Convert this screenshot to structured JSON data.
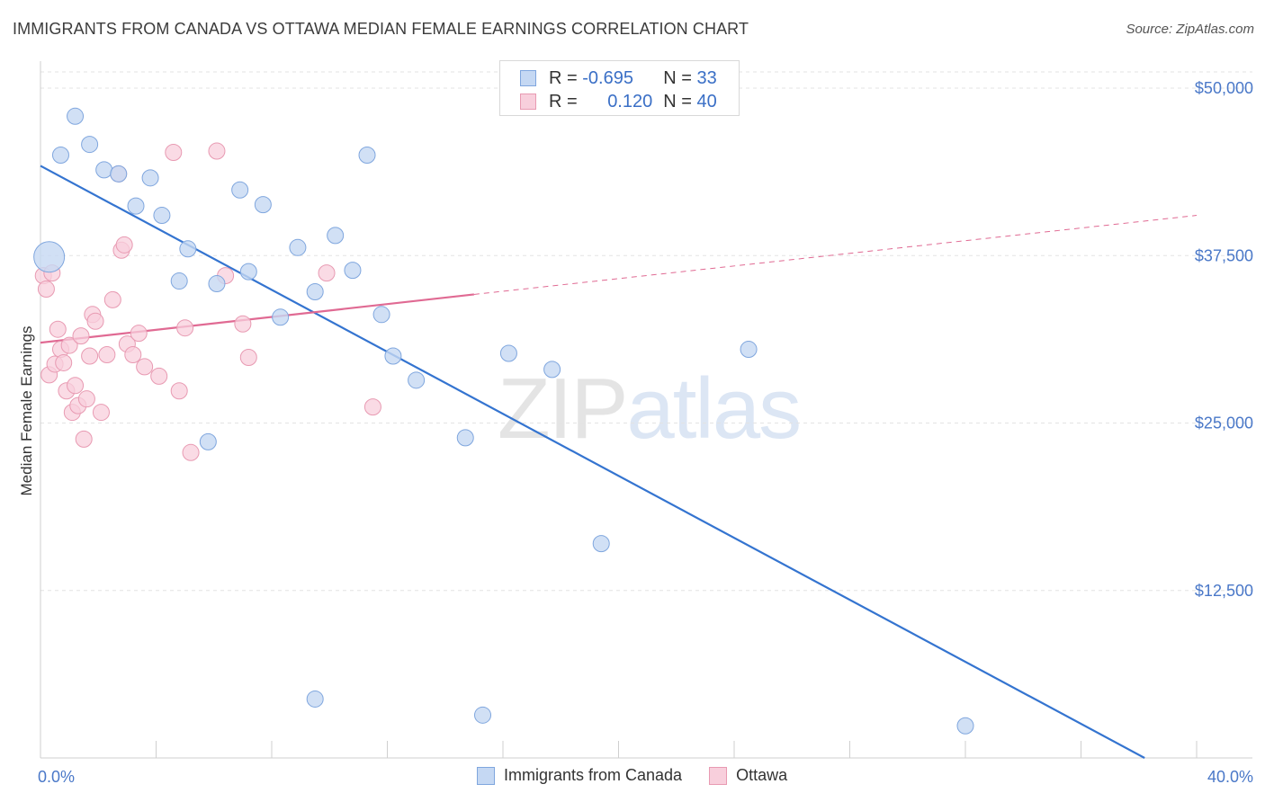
{
  "title": "IMMIGRANTS FROM CANADA VS OTTAWA MEDIAN FEMALE EARNINGS CORRELATION CHART",
  "source": "Source: ZipAtlas.com",
  "watermark": {
    "zip": "ZIP",
    "atlas": "atlas"
  },
  "colors": {
    "blue_fill": "#c5d8f3",
    "blue_stroke": "#7fa6de",
    "blue_line": "#3474d0",
    "pink_fill": "#f8cfdc",
    "pink_stroke": "#e89ab2",
    "pink_line": "#e06a93",
    "tick": "#4a78c8"
  },
  "legend": {
    "rows": [
      {
        "r_label": "R = ",
        "r_value": "-0.695",
        "n_label": "N = ",
        "n_value": "33"
      },
      {
        "r_label": "R = ",
        "r_value": "0.120",
        "n_label": "N = ",
        "n_value": "40"
      }
    ]
  },
  "bottom_legend": [
    "Immigrants from Canada",
    "Ottawa"
  ],
  "chart_data": {
    "type": "scatter",
    "title": "IMMIGRANTS FROM CANADA VS OTTAWA MEDIAN FEMALE EARNINGS CORRELATION CHART",
    "xlabel": "",
    "ylabel": "Median Female Earnings",
    "xlim": [
      0,
      40
    ],
    "ylim": [
      0,
      52000
    ],
    "x_ticks": [
      {
        "value": 0,
        "label": "0.0%"
      },
      {
        "value": 40,
        "label": "40.0%"
      }
    ],
    "y_ticks": [
      {
        "value": 12500,
        "label": "$12,500"
      },
      {
        "value": 25000,
        "label": "$25,000"
      },
      {
        "value": 37500,
        "label": "$37,500"
      },
      {
        "value": 50000,
        "label": "$50,000"
      }
    ],
    "grid": true,
    "legend_position": "top-center",
    "series": [
      {
        "name": "Immigrants from Canada",
        "color": "#7fa6de",
        "points": [
          {
            "x": 0.3,
            "y": 37400,
            "big": true
          },
          {
            "x": 0.7,
            "y": 45000
          },
          {
            "x": 1.2,
            "y": 47900
          },
          {
            "x": 1.7,
            "y": 45800
          },
          {
            "x": 2.2,
            "y": 43900
          },
          {
            "x": 2.7,
            "y": 43600
          },
          {
            "x": 3.3,
            "y": 41200
          },
          {
            "x": 3.8,
            "y": 43300
          },
          {
            "x": 4.2,
            "y": 40500
          },
          {
            "x": 5.1,
            "y": 38000
          },
          {
            "x": 4.8,
            "y": 35600
          },
          {
            "x": 6.1,
            "y": 35400
          },
          {
            "x": 6.9,
            "y": 42400
          },
          {
            "x": 7.2,
            "y": 36300
          },
          {
            "x": 7.7,
            "y": 41300
          },
          {
            "x": 8.3,
            "y": 32900
          },
          {
            "x": 8.9,
            "y": 38100
          },
          {
            "x": 9.5,
            "y": 34800
          },
          {
            "x": 10.2,
            "y": 39000
          },
          {
            "x": 10.8,
            "y": 36400
          },
          {
            "x": 11.3,
            "y": 45000
          },
          {
            "x": 11.8,
            "y": 33100
          },
          {
            "x": 12.2,
            "y": 30000
          },
          {
            "x": 13.0,
            "y": 28200
          },
          {
            "x": 14.7,
            "y": 23900
          },
          {
            "x": 16.2,
            "y": 30200
          },
          {
            "x": 17.7,
            "y": 29000
          },
          {
            "x": 19.4,
            "y": 16000
          },
          {
            "x": 24.5,
            "y": 30500
          },
          {
            "x": 5.8,
            "y": 23600
          },
          {
            "x": 9.5,
            "y": 4400
          },
          {
            "x": 15.3,
            "y": 3200
          },
          {
            "x": 32.0,
            "y": 2400
          }
        ],
        "trend": {
          "x": [
            0,
            38.2
          ],
          "y": [
            44200,
            0
          ],
          "style": "solid"
        }
      },
      {
        "name": "Ottawa",
        "color": "#e89ab2",
        "points": [
          {
            "x": 0.1,
            "y": 36000
          },
          {
            "x": 0.2,
            "y": 35000
          },
          {
            "x": 0.3,
            "y": 28600
          },
          {
            "x": 0.4,
            "y": 36200
          },
          {
            "x": 0.5,
            "y": 29400
          },
          {
            "x": 0.6,
            "y": 32000
          },
          {
            "x": 0.7,
            "y": 30500
          },
          {
            "x": 0.8,
            "y": 29500
          },
          {
            "x": 0.9,
            "y": 27400
          },
          {
            "x": 1.0,
            "y": 30800
          },
          {
            "x": 1.1,
            "y": 25800
          },
          {
            "x": 1.2,
            "y": 27800
          },
          {
            "x": 1.3,
            "y": 26300
          },
          {
            "x": 1.4,
            "y": 31500
          },
          {
            "x": 1.5,
            "y": 23800
          },
          {
            "x": 1.6,
            "y": 26800
          },
          {
            "x": 1.7,
            "y": 30000
          },
          {
            "x": 1.8,
            "y": 33100
          },
          {
            "x": 1.9,
            "y": 32600
          },
          {
            "x": 2.1,
            "y": 25800
          },
          {
            "x": 2.3,
            "y": 30100
          },
          {
            "x": 2.5,
            "y": 34200
          },
          {
            "x": 2.7,
            "y": 43600
          },
          {
            "x": 2.8,
            "y": 37900
          },
          {
            "x": 2.9,
            "y": 38300
          },
          {
            "x": 3.0,
            "y": 30900
          },
          {
            "x": 3.2,
            "y": 30100
          },
          {
            "x": 3.4,
            "y": 31700
          },
          {
            "x": 3.6,
            "y": 29200
          },
          {
            "x": 4.1,
            "y": 28500
          },
          {
            "x": 4.6,
            "y": 45200
          },
          {
            "x": 4.8,
            "y": 27400
          },
          {
            "x": 5.0,
            "y": 32100
          },
          {
            "x": 5.2,
            "y": 22800
          },
          {
            "x": 6.1,
            "y": 45300
          },
          {
            "x": 6.4,
            "y": 36000
          },
          {
            "x": 7.0,
            "y": 32400
          },
          {
            "x": 7.2,
            "y": 29900
          },
          {
            "x": 9.9,
            "y": 36200
          },
          {
            "x": 11.5,
            "y": 26200
          }
        ],
        "trend": {
          "x": [
            0,
            15
          ],
          "y": [
            31000,
            34600
          ],
          "style": "solid",
          "extension": {
            "x": [
              15,
              40
            ],
            "y": [
              34600,
              40500
            ],
            "style": "dashed"
          }
        }
      }
    ]
  }
}
